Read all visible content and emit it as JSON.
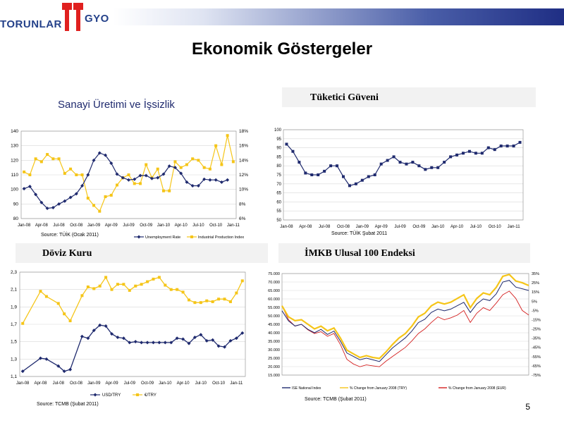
{
  "logo": {
    "left_text": "TORUNLAR",
    "right_text": "GYO"
  },
  "page_title": "Ekonomik Göstergeler",
  "page_number": "5",
  "panels": {
    "sanayi": {
      "title": "Sanayi Üretimi ve İşsizlik",
      "source": "Source: TÜİK (Ocak 2011)"
    },
    "tuketici": {
      "title": "Tüketici Güveni",
      "source": "Source: TÜİK Şubat 2011"
    },
    "doviz": {
      "title": "Döviz Kuru",
      "source": "Source: TCMB (Şubat 2011)"
    },
    "imkb": {
      "title": "İMKB Ulusal 100 Endeksi",
      "source": "Source: TCMB (Şubat 2011)"
    }
  },
  "colors": {
    "navy": "#1f2a6e",
    "gold": "#f5c518",
    "red": "#d42020",
    "black": "#000000"
  },
  "chart_data": [
    {
      "id": "sanayi",
      "type": "line",
      "categories": [
        "Jan-08",
        "Feb-08",
        "Mar-08",
        "Apr-08",
        "May-08",
        "Jun-08",
        "Jul-08",
        "Aug-08",
        "Sep-08",
        "Oct-08",
        "Nov-08",
        "Dec-08",
        "Jan-09",
        "Feb-09",
        "Mar-09",
        "Apr-09",
        "May-09",
        "Jun-09",
        "Jul-09",
        "Aug-09",
        "Sep-09",
        "Oct-09",
        "Nov-09",
        "Dec-09",
        "Jan-10",
        "Feb-10",
        "Mar-10",
        "Apr-10",
        "May-10",
        "Jun-10",
        "Jul-10",
        "Aug-10",
        "Sep-10",
        "Oct-10",
        "Nov-10",
        "Dec-10",
        "Jan-11"
      ],
      "x_tick_labels": [
        "Jan-08",
        "Apr-08",
        "Jul-08",
        "Oct-08",
        "Jan-09",
        "Apr-09",
        "Jul-09",
        "Oct-09",
        "Jan-10",
        "Apr-10",
        "Jul-10",
        "Oct-10",
        "Jan-11"
      ],
      "series": [
        {
          "name": "Unemployment Rate",
          "axis": "right",
          "color": "#1f2a6e",
          "values": [
            10.1,
            10.4,
            9.3,
            8.2,
            7.4,
            7.5,
            8.0,
            8.4,
            8.9,
            9.4,
            10.5,
            12.0,
            14.0,
            15.0,
            14.7,
            13.6,
            12.1,
            11.6,
            11.3,
            11.4,
            11.9,
            11.9,
            11.5,
            11.6,
            12.1,
            13.2,
            13.0,
            12.2,
            11.0,
            10.5,
            10.5,
            11.4,
            11.3,
            11.3,
            11.0,
            11.3,
            null
          ]
        },
        {
          "name": "Industrial Production Index",
          "axis": "left",
          "color": "#f5c518",
          "values": [
            112,
            110,
            121,
            119,
            124,
            121,
            121,
            111,
            114,
            110,
            110,
            94,
            89,
            85,
            95,
            96,
            103,
            108,
            110,
            104,
            104,
            117,
            108,
            114,
            99,
            99,
            119,
            115,
            117,
            121,
            120,
            115,
            114,
            130,
            117,
            137,
            119
          ]
        }
      ],
      "ylim_left": [
        80,
        140
      ],
      "yticks_left": [
        80,
        90,
        100,
        110,
        120,
        130,
        140
      ],
      "ylim_right": [
        6,
        18
      ],
      "yticks_right": [
        "6%",
        "8%",
        "10%",
        "12%",
        "14%",
        "16%",
        "18%"
      ],
      "grid": true,
      "legend": "bottom"
    },
    {
      "id": "tuketici",
      "type": "line",
      "categories": [
        "Jan-08",
        "Feb-08",
        "Mar-08",
        "Apr-08",
        "May-08",
        "Jun-08",
        "Jul-08",
        "Aug-08",
        "Sep-08",
        "Oct-08",
        "Nov-08",
        "Dec-08",
        "Jan-09",
        "Feb-09",
        "Mar-09",
        "Apr-09",
        "May-09",
        "Jun-09",
        "Jul-09",
        "Aug-09",
        "Sep-09",
        "Oct-09",
        "Nov-09",
        "Dec-09",
        "Jan-10",
        "Feb-10",
        "Mar-10",
        "Apr-10",
        "May-10",
        "Jun-10",
        "Jul-10",
        "Aug-10",
        "Sep-10",
        "Oct-10",
        "Nov-10",
        "Dec-10",
        "Jan-11",
        "Feb-11"
      ],
      "x_tick_labels": [
        "Jan-08",
        "Apr-08",
        "Jul-08",
        "Oct-08",
        "Jan-09",
        "Apr-09",
        "Jul-09",
        "Oct-09",
        "Jan-10",
        "Apr-10",
        "Jul-10",
        "Oct-10",
        "Jan-11"
      ],
      "series": [
        {
          "name": "",
          "color": "#1f2a6e",
          "values": [
            92,
            88,
            82,
            76,
            75,
            75,
            77,
            80,
            80,
            74,
            69,
            70,
            72,
            74,
            75,
            81,
            83,
            85,
            82,
            81,
            82,
            80,
            78,
            79,
            79,
            82,
            85,
            86,
            87,
            88,
            87,
            87,
            90,
            89,
            91,
            91,
            91,
            93
          ]
        }
      ],
      "ylim": [
        50,
        100
      ],
      "yticks": [
        50,
        55,
        60,
        65,
        70,
        75,
        80,
        85,
        90,
        95,
        100
      ],
      "grid": true
    },
    {
      "id": "doviz",
      "type": "line",
      "categories": [
        "Jan-08",
        "Feb-08",
        "Mar-08",
        "Apr-08",
        "May-08",
        "Jun-08",
        "Jul-08",
        "Aug-08",
        "Sep-08",
        "Oct-08",
        "Nov-08",
        "Dec-08",
        "Jan-09",
        "Feb-09",
        "Mar-09",
        "Apr-09",
        "May-09",
        "Jun-09",
        "Jul-09",
        "Aug-09",
        "Sep-09",
        "Oct-09",
        "Nov-09",
        "Dec-09",
        "Jan-10",
        "Feb-10",
        "Mar-10",
        "Apr-10",
        "May-10",
        "Jun-10",
        "Jul-10",
        "Aug-10",
        "Sep-10",
        "Oct-10",
        "Nov-10",
        "Dec-10",
        "Jan-11",
        "Feb-11"
      ],
      "x_tick_labels": [
        "Jan-08",
        "Apr-08",
        "Jul-08",
        "Oct-08",
        "Jan-09",
        "Apr-09",
        "Jul-09",
        "Oct-09",
        "Jan-10",
        "Apr-10",
        "Jul-10",
        "Oct-10",
        "Jan-11"
      ],
      "series": [
        {
          "name": "USD/TRY",
          "color": "#1f2a6e",
          "marker": "diamond",
          "values": [
            1.16,
            null,
            null,
            1.31,
            1.3,
            null,
            1.22,
            1.16,
            1.18,
            null,
            1.56,
            1.54,
            1.63,
            1.69,
            1.68,
            1.59,
            1.55,
            1.54,
            1.49,
            1.5,
            1.49,
            1.49,
            1.49,
            1.49,
            1.49,
            1.49,
            1.54,
            1.53,
            1.48,
            1.55,
            1.58,
            1.51,
            1.52,
            1.45,
            1.44,
            1.51,
            1.54,
            1.6
          ]
        },
        {
          "name": "€/TRY",
          "color": "#f5c518",
          "marker": "square",
          "values": [
            1.71,
            null,
            null,
            2.08,
            2.02,
            null,
            1.94,
            1.82,
            1.74,
            null,
            2.03,
            2.13,
            2.11,
            2.14,
            2.24,
            2.1,
            2.16,
            2.16,
            2.09,
            2.14,
            2.16,
            2.19,
            2.22,
            2.24,
            2.15,
            2.1,
            2.1,
            2.07,
            1.98,
            1.95,
            1.95,
            1.97,
            1.96,
            1.99,
            1.99,
            1.96,
            2.06,
            2.2
          ]
        }
      ],
      "ylim": [
        1.1,
        2.3
      ],
      "yticks": [
        "1,1",
        "1,3",
        "1,5",
        "1,7",
        "1,9",
        "2,1",
        "2,3"
      ],
      "grid": true,
      "legend": "bottom"
    },
    {
      "id": "imkb",
      "type": "line",
      "x_range": [
        "Jan-08",
        "Feb-11"
      ],
      "series": [
        {
          "name": "ISE National Index",
          "axis": "left",
          "color": "#1f2a6e",
          "values": [
            53000,
            47000,
            44000,
            45000,
            42000,
            40000,
            42000,
            39000,
            41000,
            35000,
            28000,
            26000,
            24000,
            25000,
            24000,
            23000,
            27000,
            31000,
            34000,
            37000,
            41000,
            46000,
            48000,
            52000,
            54000,
            53000,
            54000,
            56000,
            58000,
            52000,
            57000,
            60000,
            59000,
            63000,
            70000,
            71000,
            67000,
            66000,
            65000
          ]
        },
        {
          "name": "% Change from January 2008 (TRY)",
          "axis": "right",
          "color": "#f5c518",
          "values": [
            0,
            -12,
            -16,
            -15,
            -20,
            -25,
            -22,
            -27,
            -24,
            -35,
            -48,
            -52,
            -56,
            -54,
            -56,
            -57,
            -50,
            -42,
            -35,
            -30,
            -22,
            -12,
            -8,
            0,
            4,
            2,
            4,
            8,
            12,
            -2,
            8,
            14,
            12,
            20,
            32,
            34,
            27,
            25,
            22
          ]
        },
        {
          "name": "% Change from January 2008 (EUR)",
          "axis": "right",
          "color": "#d42020",
          "values": [
            0,
            -15,
            -22,
            -20,
            -26,
            -30,
            -28,
            -33,
            -30,
            -42,
            -58,
            -63,
            -66,
            -64,
            -65,
            -66,
            -60,
            -55,
            -50,
            -45,
            -38,
            -30,
            -25,
            -18,
            -12,
            -15,
            -13,
            -10,
            -5,
            -18,
            -8,
            -2,
            -5,
            3,
            12,
            16,
            8,
            -5,
            -10
          ]
        }
      ],
      "ylim_left": [
        15000,
        75000
      ],
      "yticks_left": [
        "15.000",
        "20.000",
        "25.000",
        "30.000",
        "35.000",
        "40.000",
        "45.000",
        "50.000",
        "55.000",
        "60.000",
        "65.000",
        "70.000",
        "75.000"
      ],
      "ylim_right": [
        -75,
        35
      ],
      "yticks_right": [
        "-75%",
        "-65%",
        "-55%",
        "-45%",
        "-35%",
        "-25%",
        "-15%",
        "-5%",
        "5%",
        "15%",
        "25%",
        "35%"
      ],
      "grid": true,
      "legend": "bottom"
    }
  ]
}
